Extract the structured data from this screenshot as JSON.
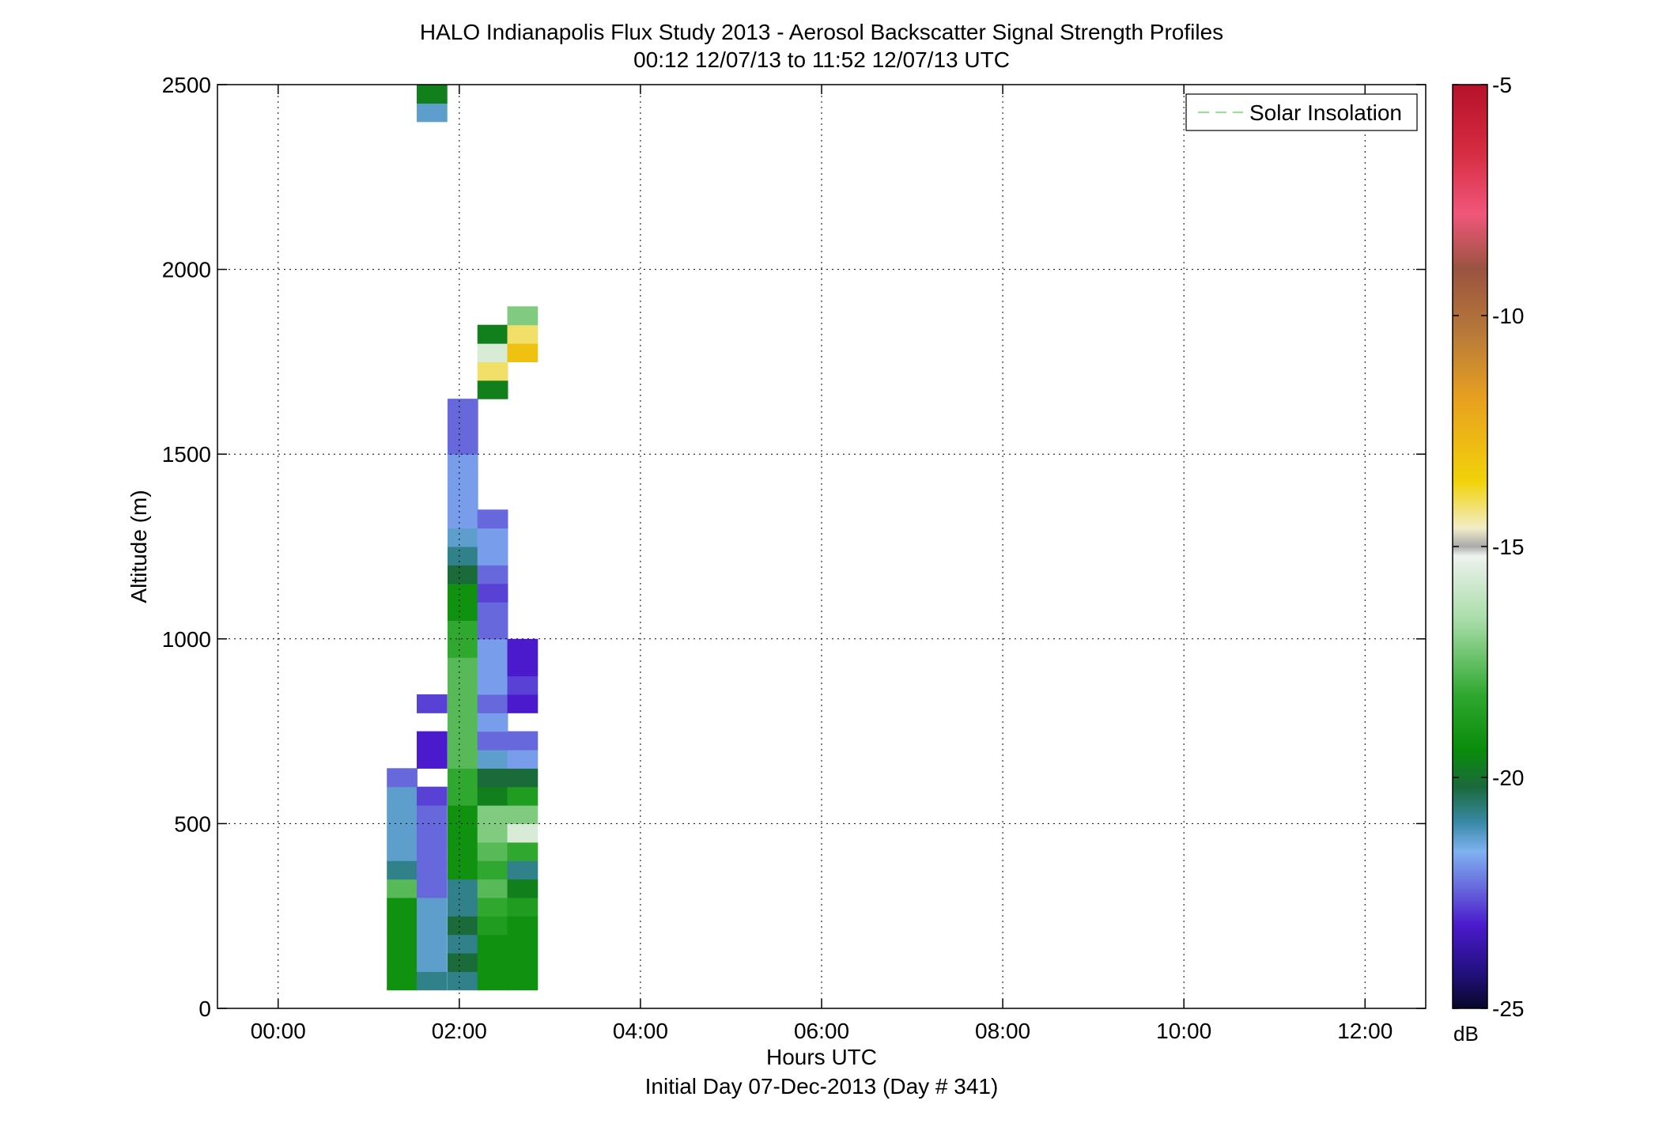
{
  "chart_data": {
    "type": "heatmap",
    "title": "HALO Indianapolis Flux Study 2013 - Aerosol Backscatter Signal Strength Profiles",
    "subtitle": "00:12 12/07/13 to 11:52 12/07/13  UTC",
    "xlabel": "Hours UTC",
    "xlabel2": "Initial Day 07-Dec-2013 (Day # 341)",
    "ylabel": "Altitude (m)",
    "xlim_hours": [
      -0.67,
      12.67
    ],
    "ylim": [
      0,
      2500
    ],
    "x_ticks": [
      {
        "value": 0,
        "label": "00:00"
      },
      {
        "value": 2,
        "label": "02:00"
      },
      {
        "value": 4,
        "label": "04:00"
      },
      {
        "value": 6,
        "label": "06:00"
      },
      {
        "value": 8,
        "label": "08:00"
      },
      {
        "value": 10,
        "label": "10:00"
      },
      {
        "value": 12,
        "label": "12:00"
      }
    ],
    "y_ticks": [
      0,
      500,
      1000,
      1500,
      2000,
      2500
    ],
    "grid": true,
    "legend": {
      "label": "Solar Insolation",
      "position": "top-right",
      "color": "#8ee68e"
    },
    "colorbar": {
      "label": "dB",
      "min": -25,
      "max": -5,
      "ticks": [
        -5,
        -10,
        -15,
        -20,
        -25
      ]
    },
    "cell_width_hours": 0.333,
    "cell_height_m": 50,
    "cells": [
      [
        1.2,
        75,
        -19
      ],
      [
        1.2,
        125,
        -19
      ],
      [
        1.2,
        175,
        -19
      ],
      [
        1.2,
        225,
        -19
      ],
      [
        1.2,
        275,
        -19
      ],
      [
        1.2,
        325,
        -17.5
      ],
      [
        1.2,
        375,
        -20.5
      ],
      [
        1.2,
        425,
        -21
      ],
      [
        1.2,
        475,
        -21
      ],
      [
        1.2,
        525,
        -21
      ],
      [
        1.2,
        575,
        -21
      ],
      [
        1.2,
        625,
        -22
      ],
      [
        1.53,
        75,
        -20.5
      ],
      [
        1.53,
        125,
        -21
      ],
      [
        1.53,
        175,
        -21
      ],
      [
        1.53,
        225,
        -21
      ],
      [
        1.53,
        275,
        -21
      ],
      [
        1.53,
        325,
        -22
      ],
      [
        1.53,
        375,
        -22
      ],
      [
        1.53,
        425,
        -22
      ],
      [
        1.53,
        475,
        -22
      ],
      [
        1.53,
        525,
        -22
      ],
      [
        1.53,
        575,
        -22.5
      ],
      [
        1.53,
        675,
        -23
      ],
      [
        1.53,
        725,
        -23
      ],
      [
        1.53,
        825,
        -22.5
      ],
      [
        1.53,
        2425,
        -21
      ],
      [
        1.53,
        2475,
        -19.5
      ],
      [
        1.87,
        75,
        -20.5
      ],
      [
        1.87,
        125,
        -20
      ],
      [
        1.87,
        175,
        -20.5
      ],
      [
        1.87,
        225,
        -20
      ],
      [
        1.87,
        275,
        -20.5
      ],
      [
        1.87,
        325,
        -20.5
      ],
      [
        1.87,
        375,
        -19
      ],
      [
        1.87,
        425,
        -19
      ],
      [
        1.87,
        475,
        -19
      ],
      [
        1.87,
        525,
        -19
      ],
      [
        1.87,
        575,
        -18
      ],
      [
        1.87,
        625,
        -18
      ],
      [
        1.87,
        675,
        -17.5
      ],
      [
        1.87,
        725,
        -17.5
      ],
      [
        1.87,
        775,
        -17.5
      ],
      [
        1.87,
        825,
        -17.5
      ],
      [
        1.87,
        875,
        -17.5
      ],
      [
        1.87,
        925,
        -17.5
      ],
      [
        1.87,
        975,
        -18
      ],
      [
        1.87,
        1025,
        -18
      ],
      [
        1.87,
        1075,
        -19
      ],
      [
        1.87,
        1125,
        -19
      ],
      [
        1.87,
        1175,
        -20
      ],
      [
        1.87,
        1225,
        -20.5
      ],
      [
        1.87,
        1275,
        -21
      ],
      [
        1.87,
        1325,
        -21.5
      ],
      [
        1.87,
        1375,
        -21.5
      ],
      [
        1.87,
        1425,
        -21.5
      ],
      [
        1.87,
        1475,
        -21.5
      ],
      [
        1.87,
        1525,
        -22
      ],
      [
        1.87,
        1575,
        -22
      ],
      [
        1.87,
        1625,
        -22
      ],
      [
        2.2,
        75,
        -19
      ],
      [
        2.2,
        125,
        -19
      ],
      [
        2.2,
        175,
        -19
      ],
      [
        2.2,
        225,
        -18.5
      ],
      [
        2.2,
        275,
        -18
      ],
      [
        2.2,
        325,
        -17.5
      ],
      [
        2.2,
        375,
        -18
      ],
      [
        2.2,
        425,
        -17.5
      ],
      [
        2.2,
        475,
        -17
      ],
      [
        2.2,
        525,
        -17
      ],
      [
        2.2,
        575,
        -19.5
      ],
      [
        2.2,
        625,
        -20
      ],
      [
        2.2,
        675,
        -21
      ],
      [
        2.2,
        725,
        -22
      ],
      [
        2.2,
        775,
        -21.5
      ],
      [
        2.2,
        825,
        -22
      ],
      [
        2.2,
        875,
        -21.5
      ],
      [
        2.2,
        925,
        -21.5
      ],
      [
        2.2,
        975,
        -21.5
      ],
      [
        2.2,
        1025,
        -22
      ],
      [
        2.2,
        1075,
        -22
      ],
      [
        2.2,
        1125,
        -22.5
      ],
      [
        2.2,
        1175,
        -22
      ],
      [
        2.2,
        1225,
        -21.5
      ],
      [
        2.2,
        1275,
        -21.5
      ],
      [
        2.2,
        1325,
        -22
      ],
      [
        2.2,
        1675,
        -19.5
      ],
      [
        2.2,
        1725,
        -14
      ],
      [
        2.2,
        1775,
        -15.5
      ],
      [
        2.2,
        1825,
        -19.5
      ],
      [
        2.53,
        75,
        -19
      ],
      [
        2.53,
        125,
        -19
      ],
      [
        2.53,
        175,
        -19
      ],
      [
        2.53,
        225,
        -19
      ],
      [
        2.53,
        275,
        -18.5
      ],
      [
        2.53,
        325,
        -19.5
      ],
      [
        2.53,
        375,
        -20.5
      ],
      [
        2.53,
        425,
        -18
      ],
      [
        2.53,
        475,
        -15.5
      ],
      [
        2.53,
        525,
        -17
      ],
      [
        2.53,
        575,
        -18.5
      ],
      [
        2.53,
        625,
        -20
      ],
      [
        2.53,
        675,
        -21.5
      ],
      [
        2.53,
        725,
        -22
      ],
      [
        2.53,
        825,
        -23
      ],
      [
        2.53,
        875,
        -22.5
      ],
      [
        2.53,
        925,
        -23
      ],
      [
        2.53,
        975,
        -23
      ],
      [
        2.53,
        1775,
        -13
      ],
      [
        2.53,
        1825,
        -14
      ],
      [
        2.53,
        1875,
        -17
      ]
    ]
  }
}
